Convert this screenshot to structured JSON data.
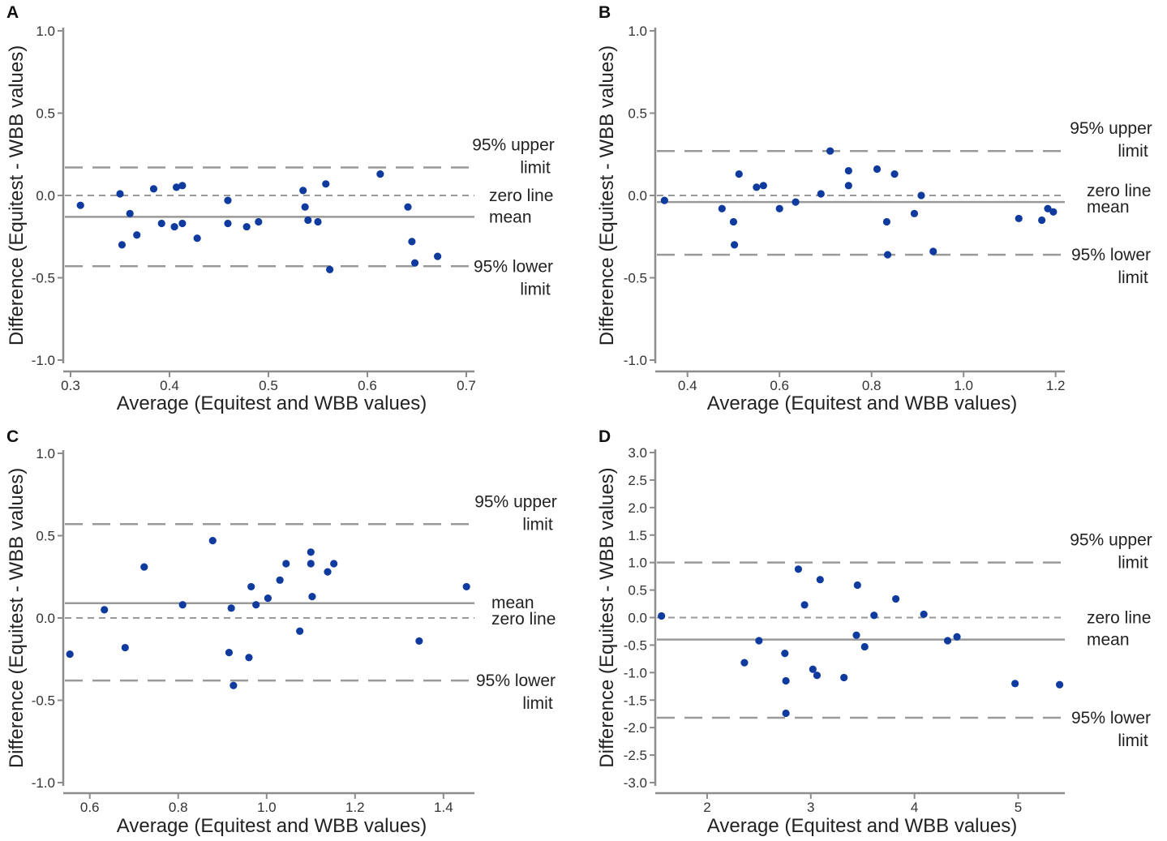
{
  "chart_data": [
    {
      "panel": "A",
      "type": "scatter",
      "xlabel": "Average (Equitest and WBB values)",
      "ylabel": "Difference (Equitest - WBB values)",
      "xlim": [
        0.3,
        0.7
      ],
      "ylim": [
        -1.0,
        1.0
      ],
      "xticks": [
        0.3,
        0.4,
        0.5,
        0.6,
        0.7
      ],
      "xtick_labels": [
        "0.3",
        "0.4",
        "0.5",
        "0.6",
        "0.7"
      ],
      "yticks": [
        -1.0,
        -0.5,
        0.0,
        0.5,
        1.0
      ],
      "ytick_labels": [
        "-1.0",
        "-0.5",
        "0.0",
        "0.5",
        "1.0"
      ],
      "reference_lines": {
        "upper": 0.17,
        "zero": 0.0,
        "mean": -0.13,
        "lower": -0.43
      },
      "labels": {
        "upper": [
          "95% upper",
          "limit"
        ],
        "zero": [
          "zero line"
        ],
        "mean": [
          "mean"
        ],
        "lower": [
          "95% lower",
          "limit"
        ]
      },
      "label_order": [
        "upper",
        "zero",
        "mean",
        "lower"
      ],
      "points": [
        [
          0.31,
          -0.06
        ],
        [
          0.35,
          0.01
        ],
        [
          0.352,
          -0.3
        ],
        [
          0.36,
          -0.11
        ],
        [
          0.367,
          -0.24
        ],
        [
          0.384,
          0.04
        ],
        [
          0.392,
          -0.17
        ],
        [
          0.405,
          -0.19
        ],
        [
          0.407,
          0.05
        ],
        [
          0.413,
          0.06
        ],
        [
          0.413,
          -0.17
        ],
        [
          0.428,
          -0.26
        ],
        [
          0.459,
          -0.03
        ],
        [
          0.459,
          -0.17
        ],
        [
          0.478,
          -0.19
        ],
        [
          0.49,
          -0.16
        ],
        [
          0.535,
          0.03
        ],
        [
          0.537,
          -0.07
        ],
        [
          0.54,
          -0.15
        ],
        [
          0.55,
          -0.16
        ],
        [
          0.558,
          0.07
        ],
        [
          0.562,
          -0.45
        ],
        [
          0.613,
          0.13
        ],
        [
          0.641,
          -0.07
        ],
        [
          0.645,
          -0.28
        ],
        [
          0.648,
          -0.41
        ],
        [
          0.671,
          -0.37
        ]
      ]
    },
    {
      "panel": "B",
      "type": "scatter",
      "xlabel": "Average (Equitest and WBB values)",
      "ylabel": "Difference (Equitest - WBB values)",
      "xlim": [
        0.33,
        1.22
      ],
      "ylim": [
        -1.0,
        1.0
      ],
      "xticks": [
        0.4,
        0.6,
        0.8,
        1.0,
        1.2
      ],
      "xtick_labels": [
        "0.4",
        "0.6",
        "0.8",
        "1.0",
        "1.2"
      ],
      "yticks": [
        -1.0,
        -0.5,
        0.0,
        0.5,
        1.0
      ],
      "ytick_labels": [
        "-1.0",
        "-0.5",
        "0.0",
        "0.5",
        "1.0"
      ],
      "reference_lines": {
        "upper": 0.27,
        "zero": 0.0,
        "mean": -0.04,
        "lower": -0.36
      },
      "labels": {
        "upper": [
          "95% upper",
          "limit"
        ],
        "zero": [
          "zero line"
        ],
        "mean": [
          "mean"
        ],
        "lower": [
          "95% lower",
          "limit"
        ]
      },
      "label_order": [
        "upper",
        "zero",
        "mean",
        "lower"
      ],
      "points": [
        [
          0.35,
          -0.03
        ],
        [
          0.475,
          -0.08
        ],
        [
          0.5,
          -0.16
        ],
        [
          0.502,
          -0.3
        ],
        [
          0.512,
          0.13
        ],
        [
          0.55,
          0.05
        ],
        [
          0.565,
          0.06
        ],
        [
          0.6,
          -0.08
        ],
        [
          0.635,
          -0.04
        ],
        [
          0.69,
          0.01
        ],
        [
          0.71,
          0.27
        ],
        [
          0.75,
          0.15
        ],
        [
          0.75,
          0.06
        ],
        [
          0.812,
          0.16
        ],
        [
          0.833,
          -0.16
        ],
        [
          0.835,
          -0.36
        ],
        [
          0.85,
          0.13
        ],
        [
          0.893,
          -0.11
        ],
        [
          0.908,
          0.0
        ],
        [
          0.934,
          -0.34
        ],
        [
          1.12,
          -0.14
        ],
        [
          1.17,
          -0.15
        ],
        [
          1.183,
          -0.08
        ],
        [
          1.195,
          -0.1
        ]
      ]
    },
    {
      "panel": "C",
      "type": "scatter",
      "xlabel": "Average (Equitest and WBB values)",
      "ylabel": "Difference (Equitest - WBB values)",
      "xlim": [
        0.54,
        1.47
      ],
      "ylim": [
        -1.0,
        1.0
      ],
      "xticks": [
        0.6,
        0.8,
        1.0,
        1.2,
        1.4
      ],
      "xtick_labels": [
        "0.6",
        "0.8",
        "1.0",
        "1.2",
        "1.4"
      ],
      "yticks": [
        -1.0,
        -0.5,
        0.0,
        0.5,
        1.0
      ],
      "ytick_labels": [
        "-1.0",
        "-0.5",
        "0.0",
        "0.5",
        "1.0"
      ],
      "reference_lines": {
        "upper": 0.57,
        "zero": 0.0,
        "mean": 0.09,
        "lower": -0.38
      },
      "labels": {
        "upper": [
          "95% upper",
          "limit"
        ],
        "zero": [
          "zero line"
        ],
        "mean": [
          "mean"
        ],
        "lower": [
          "95% lower",
          "limit"
        ]
      },
      "label_order": [
        "upper",
        "mean",
        "zero",
        "lower"
      ],
      "points": [
        [
          0.555,
          -0.22
        ],
        [
          0.633,
          0.05
        ],
        [
          0.68,
          -0.18
        ],
        [
          0.723,
          0.31
        ],
        [
          0.81,
          0.08
        ],
        [
          0.878,
          0.47
        ],
        [
          0.915,
          -0.21
        ],
        [
          0.92,
          0.06
        ],
        [
          0.925,
          -0.41
        ],
        [
          0.96,
          -0.24
        ],
        [
          0.965,
          0.19
        ],
        [
          0.976,
          0.08
        ],
        [
          1.003,
          0.12
        ],
        [
          1.03,
          0.23
        ],
        [
          1.044,
          0.33
        ],
        [
          1.075,
          -0.08
        ],
        [
          1.1,
          0.4
        ],
        [
          1.1,
          0.33
        ],
        [
          1.103,
          0.13
        ],
        [
          1.138,
          0.28
        ],
        [
          1.152,
          0.33
        ],
        [
          1.345,
          -0.14
        ],
        [
          1.452,
          0.19
        ]
      ]
    },
    {
      "panel": "D",
      "type": "scatter",
      "xlabel": "Average (Equitest and WBB values)",
      "ylabel": "Difference (Equitest - WBB values)",
      "xlim": [
        1.5,
        5.45
      ],
      "ylim": [
        -3.0,
        3.0
      ],
      "xticks": [
        2,
        3,
        4,
        5
      ],
      "xtick_labels": [
        "2",
        "3",
        "4",
        "5"
      ],
      "yticks": [
        -3.0,
        -2.5,
        -2.0,
        -1.5,
        -1.0,
        -0.5,
        0.0,
        0.5,
        1.0,
        1.5,
        2.0,
        2.5,
        3.0
      ],
      "ytick_labels": [
        "-3.0",
        "-2.5",
        "-2.0",
        "-1.5",
        "-1.0",
        "-0.5",
        "0.0",
        "0.5",
        "1.0",
        "1.5",
        "2.0",
        "2.5",
        "3.0"
      ],
      "reference_lines": {
        "upper": 1.0,
        "zero": 0.0,
        "mean": -0.4,
        "lower": -1.82
      },
      "labels": {
        "upper": [
          "95% upper",
          "limit"
        ],
        "zero": [
          "zero line"
        ],
        "mean": [
          "mean"
        ],
        "lower": [
          "95% lower",
          "limit"
        ]
      },
      "label_order": [
        "upper",
        "zero",
        "mean",
        "lower"
      ],
      "points": [
        [
          1.56,
          0.03
        ],
        [
          2.36,
          -0.82
        ],
        [
          2.5,
          -0.42
        ],
        [
          2.75,
          -0.65
        ],
        [
          2.76,
          -1.15
        ],
        [
          2.76,
          -1.74
        ],
        [
          2.88,
          0.88
        ],
        [
          2.94,
          0.23
        ],
        [
          3.02,
          -0.94
        ],
        [
          3.06,
          -1.05
        ],
        [
          3.09,
          0.69
        ],
        [
          3.32,
          -1.09
        ],
        [
          3.44,
          -0.32
        ],
        [
          3.45,
          0.59
        ],
        [
          3.52,
          -0.53
        ],
        [
          3.61,
          0.04
        ],
        [
          3.82,
          0.34
        ],
        [
          4.09,
          0.06
        ],
        [
          4.32,
          -0.42
        ],
        [
          4.41,
          -0.35
        ],
        [
          4.97,
          -1.2
        ],
        [
          5.4,
          -1.22
        ]
      ]
    }
  ]
}
